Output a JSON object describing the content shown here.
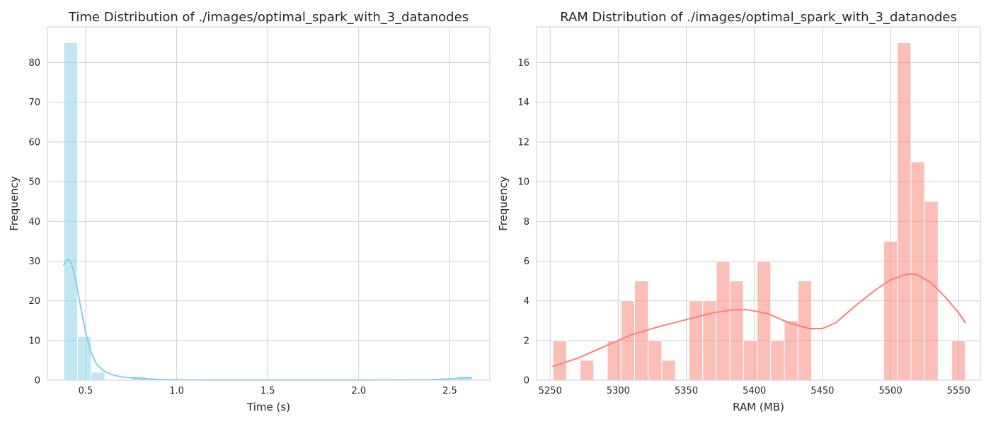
{
  "chart_data": [
    {
      "type": "histogram",
      "title": "Time Distribution of ./images/optimal_spark_with_3_datanodes",
      "xlabel": "Time (s)",
      "ylabel": "Frequency",
      "xlim": [
        0.29,
        2.72
      ],
      "ylim": [
        0,
        89
      ],
      "xticks": [
        0.5,
        1.0,
        1.5,
        2.0,
        2.5
      ],
      "xtick_labels": [
        "0.5",
        "1.0",
        "1.5",
        "2.0",
        "2.5"
      ],
      "yticks": [
        0,
        10,
        20,
        30,
        40,
        50,
        60,
        70,
        80
      ],
      "grid": true,
      "bar_color": "#87ceeb",
      "kde_color": "#87ceeb",
      "bins": [
        {
          "x0": 0.38,
          "x1": 0.455,
          "count": 85
        },
        {
          "x0": 0.455,
          "x1": 0.53,
          "count": 11
        },
        {
          "x0": 0.53,
          "x1": 0.605,
          "count": 2
        },
        {
          "x0": 0.755,
          "x1": 0.83,
          "count": 1
        },
        {
          "x0": 2.545,
          "x1": 2.62,
          "count": 1
        }
      ],
      "kde": {
        "x": [
          0.38,
          0.39,
          0.4,
          0.41,
          0.42,
          0.43,
          0.45,
          0.47,
          0.5,
          0.53,
          0.56,
          0.6,
          0.65,
          0.7,
          0.75,
          0.8,
          0.9,
          1.0,
          1.2,
          1.5,
          2.0,
          2.4,
          2.5,
          2.55,
          2.62
        ],
        "y": [
          29,
          30,
          30.5,
          30.3,
          29.5,
          28,
          24,
          19,
          12,
          7,
          4,
          2.3,
          1.3,
          0.8,
          0.6,
          0.45,
          0.2,
          0.1,
          0.05,
          0.03,
          0.03,
          0.1,
          0.35,
          0.5,
          0.6
        ]
      }
    },
    {
      "type": "histogram",
      "title": "RAM Distribution of ./images/optimal_spark_with_3_datanodes",
      "xlabel": "RAM (MB)",
      "ylabel": "Frequency",
      "xlim": [
        5240,
        5566
      ],
      "ylim": [
        0,
        17.8
      ],
      "xticks": [
        5250,
        5300,
        5350,
        5400,
        5450,
        5500,
        5550
      ],
      "xtick_labels": [
        "5250",
        "5300",
        "5350",
        "5400",
        "5450",
        "5500",
        "5550"
      ],
      "yticks": [
        0,
        2,
        4,
        6,
        8,
        10,
        12,
        14,
        16
      ],
      "grid": true,
      "bar_color": "#fa8072",
      "kde_color": "#fa8072",
      "bins": [
        {
          "x0": 5252,
          "x1": 5262,
          "count": 2
        },
        {
          "x0": 5272,
          "x1": 5282,
          "count": 1
        },
        {
          "x0": 5292,
          "x1": 5302,
          "count": 2
        },
        {
          "x0": 5302,
          "x1": 5312,
          "count": 4
        },
        {
          "x0": 5312,
          "x1": 5322,
          "count": 5
        },
        {
          "x0": 5322,
          "x1": 5332,
          "count": 2
        },
        {
          "x0": 5332,
          "x1": 5342,
          "count": 1
        },
        {
          "x0": 5352,
          "x1": 5362,
          "count": 4
        },
        {
          "x0": 5362,
          "x1": 5372,
          "count": 4
        },
        {
          "x0": 5372,
          "x1": 5382,
          "count": 6
        },
        {
          "x0": 5382,
          "x1": 5392,
          "count": 5
        },
        {
          "x0": 5392,
          "x1": 5402,
          "count": 2
        },
        {
          "x0": 5402,
          "x1": 5412,
          "count": 6
        },
        {
          "x0": 5412,
          "x1": 5422,
          "count": 2
        },
        {
          "x0": 5422,
          "x1": 5432,
          "count": 3
        },
        {
          "x0": 5432,
          "x1": 5442,
          "count": 5
        },
        {
          "x0": 5495,
          "x1": 5505,
          "count": 7
        },
        {
          "x0": 5505,
          "x1": 5515,
          "count": 17
        },
        {
          "x0": 5515,
          "x1": 5525,
          "count": 11
        },
        {
          "x0": 5525,
          "x1": 5535,
          "count": 9
        },
        {
          "x0": 5545,
          "x1": 5555,
          "count": 2
        }
      ],
      "kde": {
        "x": [
          5252,
          5270,
          5290,
          5310,
          5330,
          5350,
          5370,
          5385,
          5395,
          5410,
          5425,
          5440,
          5450,
          5460,
          5475,
          5490,
          5500,
          5510,
          5515,
          5520,
          5530,
          5540,
          5550,
          5555
        ],
        "y": [
          0.7,
          1.1,
          1.7,
          2.3,
          2.7,
          3.05,
          3.4,
          3.55,
          3.55,
          3.35,
          2.9,
          2.6,
          2.6,
          2.9,
          3.8,
          4.6,
          5.05,
          5.3,
          5.35,
          5.3,
          4.9,
          4.2,
          3.4,
          2.9
        ]
      }
    }
  ]
}
